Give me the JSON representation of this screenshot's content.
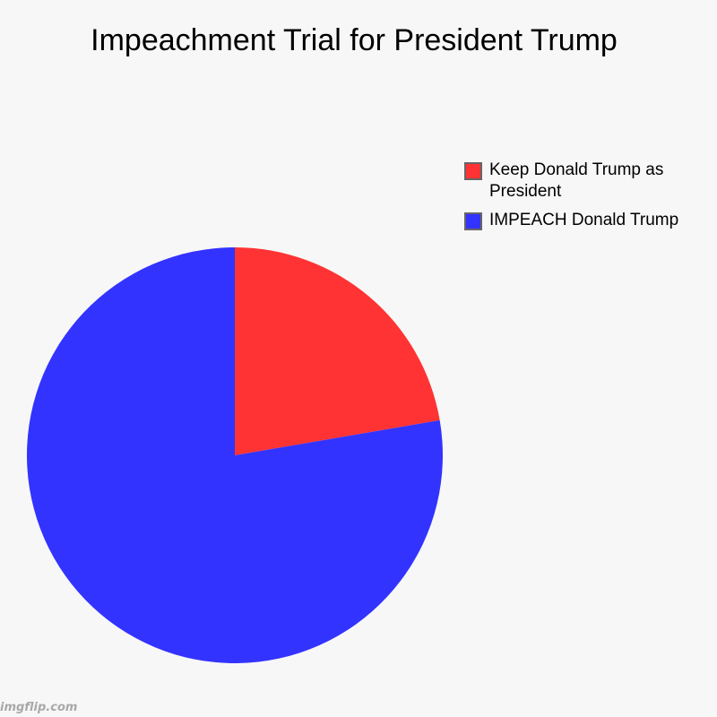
{
  "chart_data": {
    "type": "pie",
    "title": "Impeachment Trial for President Trump",
    "slices": [
      {
        "label": "Keep Donald Trump as President",
        "value": 22.3,
        "color": "#ff3333"
      },
      {
        "label": "IMPEACH Donald Trump",
        "value": 77.7,
        "color": "#3333ff"
      }
    ],
    "legend_position": "top-right"
  },
  "watermark": "imgflip.com"
}
